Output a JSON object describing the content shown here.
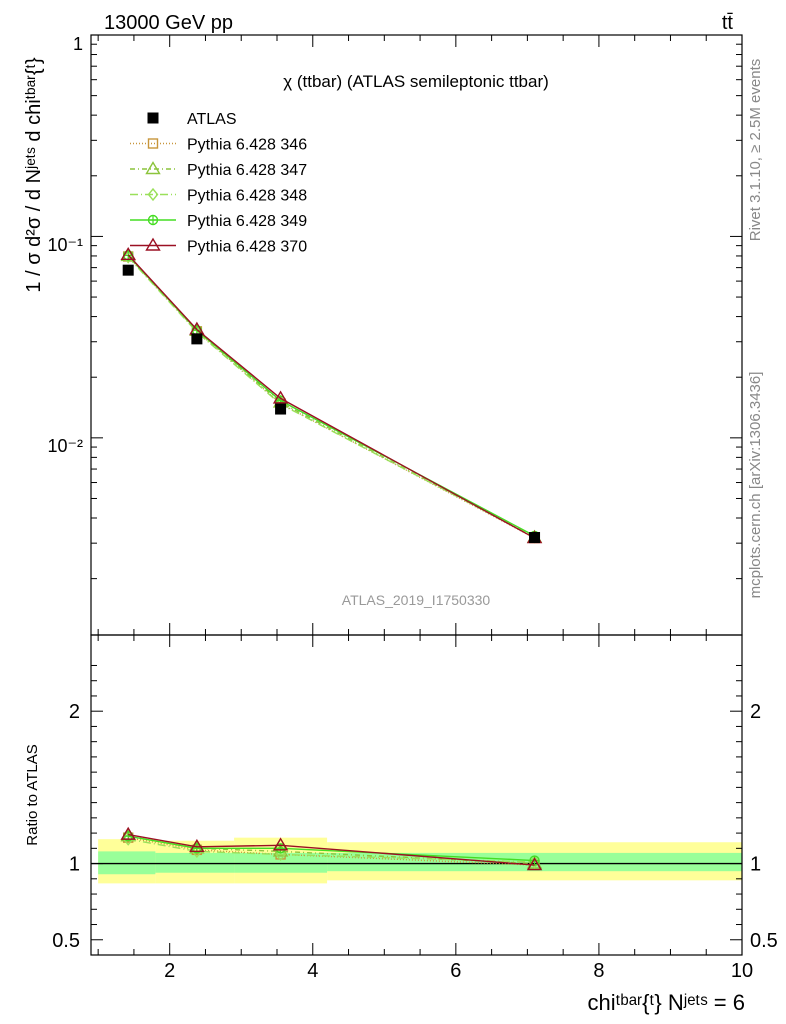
{
  "header": {
    "left": "13000 GeV pp",
    "right": "tt̄",
    "side_rivet": "Rivet 3.1.10, ≥ 2.5M events",
    "side_mcplots": "mcplots.cern.ch [arXiv:1306.3436]",
    "watermark": "ATLAS_2019_I1750330"
  },
  "chart_data": [
    {
      "type": "line",
      "title": "χ (ttbar) (ATLAS semileptonic ttbar)",
      "ylabel": "1 / σ d²σ / d Nʲᵉᵗˢ d chiᵗᵇᵃʳ{ᵗ}",
      "xlabel": "chiᵗᵇᵃʳ{ᵗ} Nʲᵉᵗˢ = 6",
      "xlim": [
        0.9,
        10.0
      ],
      "ylim": [
        0.00105,
        1.0
      ],
      "log_y": true,
      "y_tick_labels": [
        "1",
        "10⁻¹",
        "10⁻²"
      ],
      "x_tick_labels": [
        "2",
        "4",
        "6",
        "8",
        "10"
      ],
      "legend_position": "top-left",
      "data": {
        "name": "ATLAS",
        "x": [
          1.42,
          2.38,
          3.55,
          7.1
        ],
        "y": [
          0.068,
          0.031,
          0.0139,
          0.0032
        ],
        "color": "#000000"
      },
      "series": [
        {
          "name": "Pythia 6.428 346",
          "color": "#c8963c",
          "marker": "square-open",
          "dash": "1,2",
          "x": [
            1.42,
            2.38,
            3.55,
            7.1
          ],
          "y": [
            0.0795,
            0.0338,
            0.0148,
            0.00318
          ]
        },
        {
          "name": "Pythia 6.428 347",
          "color": "#8cc43c",
          "marker": "triangle-open",
          "dash": "5,3,1,3",
          "x": [
            1.42,
            2.38,
            3.55,
            7.1
          ],
          "y": [
            0.08,
            0.034,
            0.015,
            0.0032
          ]
        },
        {
          "name": "Pythia 6.428 348",
          "color": "#9ae05a",
          "marker": "diamond-open",
          "dash": "8,3,1,3",
          "x": [
            1.42,
            2.38,
            3.55,
            7.1
          ],
          "y": [
            0.079,
            0.0335,
            0.0147,
            0.00322
          ]
        },
        {
          "name": "Pythia 6.428 349",
          "color": "#44dd22",
          "marker": "cross-circle",
          "dash": "",
          "x": [
            1.42,
            2.38,
            3.55,
            7.1
          ],
          "y": [
            0.0805,
            0.0342,
            0.0153,
            0.00326
          ]
        },
        {
          "name": "Pythia 6.428 370",
          "color": "#9b1023",
          "marker": "triangle-open",
          "dash": "",
          "x": [
            1.42,
            2.38,
            3.55,
            7.1
          ],
          "y": [
            0.081,
            0.0345,
            0.0157,
            0.00318
          ]
        }
      ]
    },
    {
      "type": "line",
      "ylabel": "Ratio to ATLAS",
      "ylim": [
        0.4,
        2.5
      ],
      "y_tick_labels": [
        "0.5",
        "1",
        "2"
      ],
      "reference": 1.0,
      "uncertainty_bands": {
        "bin_edges": [
          1.0,
          1.8,
          2.9,
          4.2,
          10.0
        ],
        "stat_low": [
          0.93,
          0.94,
          0.94,
          0.95
        ],
        "stat_high": [
          1.08,
          1.07,
          1.07,
          1.07
        ],
        "total_low": [
          0.87,
          0.87,
          0.87,
          0.89
        ],
        "total_high": [
          1.16,
          1.15,
          1.17,
          1.14
        ],
        "stat_color": "#99ff99",
        "total_color": "#ffff99"
      },
      "series": [
        {
          "name": "Pythia 6.428 346",
          "x": [
            1.42,
            2.38,
            3.55,
            7.1
          ],
          "y": [
            1.17,
            1.09,
            1.06,
            0.99
          ]
        },
        {
          "name": "Pythia 6.428 347",
          "x": [
            1.42,
            2.38,
            3.55,
            7.1
          ],
          "y": [
            1.18,
            1.1,
            1.08,
            1.0
          ]
        },
        {
          "name": "Pythia 6.428 348",
          "x": [
            1.42,
            2.38,
            3.55,
            7.1
          ],
          "y": [
            1.16,
            1.08,
            1.06,
            1.01
          ]
        },
        {
          "name": "Pythia 6.428 349",
          "x": [
            1.42,
            2.38,
            3.55,
            7.1
          ],
          "y": [
            1.18,
            1.1,
            1.1,
            1.02
          ]
        },
        {
          "name": "Pythia 6.428 370",
          "x": [
            1.42,
            2.38,
            3.55,
            7.1
          ],
          "y": [
            1.19,
            1.11,
            1.12,
            0.99
          ]
        }
      ]
    }
  ]
}
